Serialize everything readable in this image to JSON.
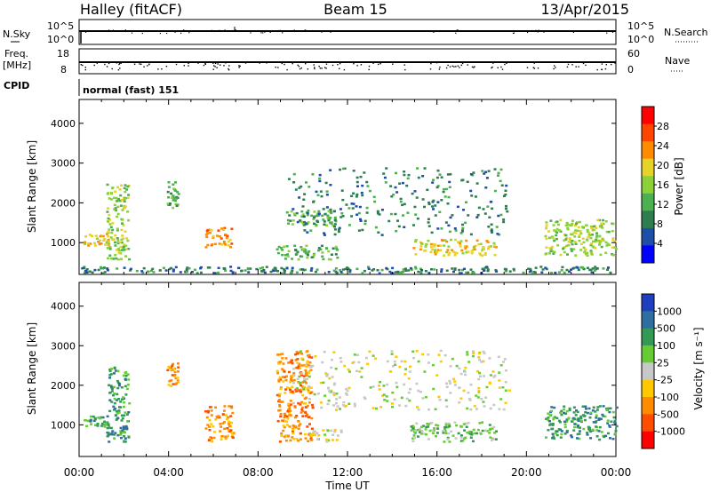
{
  "header": {
    "station": "Halley (fitACF)",
    "beam": "Beam 15",
    "date": "13/Apr/2015"
  },
  "nsky_panel": {
    "left_label": "N.Sky",
    "left_ticks": [
      "10^5",
      "10^0"
    ],
    "right_label": "N.Search",
    "right_ticks": [
      "10^5",
      "10^0"
    ]
  },
  "freq_panel": {
    "left_label_1": "Freq.",
    "left_label_2": "[MHz]",
    "left_ticks": [
      "18",
      "8"
    ],
    "right_label": "Nave",
    "right_ticks": [
      "60",
      "0"
    ]
  },
  "cpid": {
    "label": "CPID",
    "value": "normal (fast) 151"
  },
  "colors": {
    "power": [
      "#0000ff",
      "#1f4ea8",
      "#2e7d4f",
      "#4caf50",
      "#8cd13a",
      "#e6d229",
      "#ff8c00",
      "#ff4500",
      "#ff0000"
    ],
    "velocity": [
      "#ff0000",
      "#ff4d00",
      "#ff8c00",
      "#ffc800",
      "#c8c8c8",
      "#66cc33",
      "#339955",
      "#2e6fa0",
      "#1f3fbf"
    ]
  },
  "chart_data": [
    {
      "type": "heatmap",
      "name": "power",
      "ylabel": "Slant Range [km]",
      "yticks": [
        1000,
        2000,
        3000,
        4000
      ],
      "ylim": [
        200,
        4600
      ],
      "xlim": [
        0,
        24
      ],
      "colorbar": {
        "label": "Power [dB]",
        "ticks": [
          "4",
          "8",
          "12",
          "16",
          "20",
          "24",
          "28"
        ],
        "range": [
          0,
          32
        ]
      },
      "regions": [
        {
          "t": [
            0.2,
            1.3
          ],
          "r": [
            950,
            1250
          ],
          "level": 5
        },
        {
          "t": [
            1.2,
            2.2
          ],
          "r": [
            600,
            2500
          ],
          "level": 4
        },
        {
          "t": [
            3.9,
            4.4
          ],
          "r": [
            1900,
            2600
          ],
          "level": 3
        },
        {
          "t": [
            5.6,
            6.8
          ],
          "r": [
            900,
            1400
          ],
          "level": 6
        },
        {
          "t": [
            8.8,
            11.6
          ],
          "r": [
            600,
            950
          ],
          "level": 3
        },
        {
          "t": [
            9.2,
            11.5
          ],
          "r": [
            1450,
            1850
          ],
          "level": 3
        },
        {
          "t": [
            9.3,
            19.2
          ],
          "r": [
            1200,
            2900
          ],
          "level": 2
        },
        {
          "t": [
            14.9,
            18.6
          ],
          "r": [
            700,
            1100
          ],
          "level": 5
        },
        {
          "t": [
            20.8,
            24.0
          ],
          "r": [
            700,
            1600
          ],
          "level": 4
        },
        {
          "t": [
            0.0,
            23.9
          ],
          "r": [
            250,
            420
          ],
          "level": 2
        }
      ]
    },
    {
      "type": "heatmap",
      "name": "velocity",
      "ylabel": "Slant Range [km]",
      "yticks": [
        1000,
        2000,
        3000,
        4000
      ],
      "ylim": [
        200,
        4600
      ],
      "xlim": [
        0,
        24
      ],
      "xticks": [
        "00:00",
        "04:00",
        "08:00",
        "12:00",
        "16:00",
        "20:00",
        "00:00"
      ],
      "xlabel": "Time UT",
      "colorbar": {
        "label": "Velocity [m s⁻¹]",
        "ticks": [
          "1000",
          "500",
          "100",
          "25",
          "-25",
          "-100",
          "-500",
          "-1000"
        ]
      },
      "regions": [
        {
          "t": [
            0.2,
            1.3
          ],
          "r": [
            950,
            1250
          ],
          "level": 6
        },
        {
          "t": [
            1.2,
            2.2
          ],
          "r": [
            600,
            2500
          ],
          "level": 6
        },
        {
          "t": [
            3.9,
            4.4
          ],
          "r": [
            1900,
            2600
          ],
          "level": 2
        },
        {
          "t": [
            5.6,
            6.9
          ],
          "r": [
            600,
            1500
          ],
          "level": 2
        },
        {
          "t": [
            8.8,
            10.4
          ],
          "r": [
            600,
            2900
          ],
          "level": 2
        },
        {
          "t": [
            10.2,
            11.7
          ],
          "r": [
            600,
            900
          ],
          "level": 4
        },
        {
          "t": [
            9.4,
            19.2
          ],
          "r": [
            1400,
            2900
          ],
          "level": 4
        },
        {
          "t": [
            14.8,
            18.6
          ],
          "r": [
            600,
            1100
          ],
          "level": 5
        },
        {
          "t": [
            20.8,
            24.0
          ],
          "r": [
            650,
            1500
          ],
          "level": 6
        }
      ]
    }
  ]
}
